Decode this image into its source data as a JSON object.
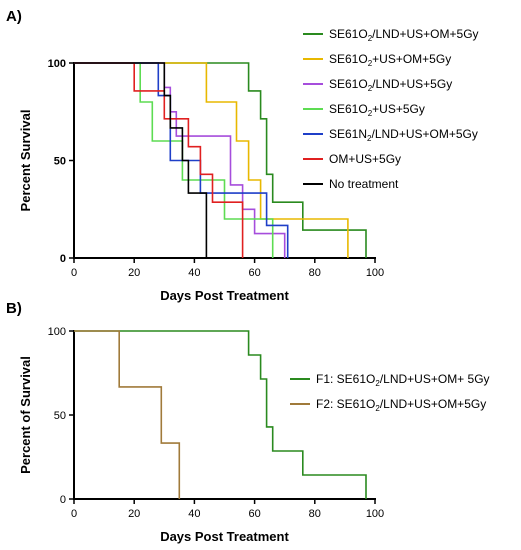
{
  "chart_data": [
    {
      "type": "line",
      "panel_label": "A)",
      "xlabel": "Days Post Treatment",
      "ylabel": "Percent Survival",
      "xlim": [
        0,
        100
      ],
      "ylim": [
        0,
        100
      ],
      "xticks": [
        0,
        20,
        40,
        60,
        80,
        100
      ],
      "yticks": [
        0,
        50,
        100
      ],
      "grid": false,
      "legend_position": "right",
      "series": [
        {
          "name": "SE61O₂/LND+US+OM+5Gy",
          "base": "SE61O",
          "sub": "2",
          "rest": "/LND+US+OM+5Gy",
          "color": "#2a8a1f",
          "steps": [
            [
              0,
              100
            ],
            [
              58,
              100
            ],
            [
              58,
              85.7
            ],
            [
              62,
              85.7
            ],
            [
              62,
              71.4
            ],
            [
              64,
              71.4
            ],
            [
              64,
              42.9
            ],
            [
              66,
              42.9
            ],
            [
              66,
              28.6
            ],
            [
              76,
              28.6
            ],
            [
              76,
              14.3
            ],
            [
              97,
              14.3
            ],
            [
              97,
              0
            ]
          ]
        },
        {
          "name": "SE61O₂+US+OM+5Gy",
          "base": "SE61O",
          "sub": "2",
          "rest": "+US+OM+5Gy",
          "color": "#e8b800",
          "steps": [
            [
              0,
              100
            ],
            [
              44,
              100
            ],
            [
              44,
              80
            ],
            [
              54,
              80
            ],
            [
              54,
              60
            ],
            [
              58,
              60
            ],
            [
              58,
              40
            ],
            [
              62,
              40
            ],
            [
              62,
              20
            ],
            [
              91,
              20
            ],
            [
              91,
              0
            ]
          ]
        },
        {
          "name": "SE61O₂/LND+US+5Gy",
          "base": "SE61O",
          "sub": "2",
          "rest": "/LND+US+5Gy",
          "color": "#a64ddc",
          "steps": [
            [
              0,
              100
            ],
            [
              30,
              100
            ],
            [
              30,
              87.5
            ],
            [
              32,
              87.5
            ],
            [
              32,
              75
            ],
            [
              34,
              75
            ],
            [
              34,
              62.5
            ],
            [
              52,
              62.5
            ],
            [
              52,
              37.5
            ],
            [
              56,
              37.5
            ],
            [
              56,
              25
            ],
            [
              60,
              25
            ],
            [
              60,
              12.5
            ],
            [
              70,
              12.5
            ],
            [
              70,
              0
            ]
          ]
        },
        {
          "name": "SE61O₂+US+5Gy",
          "base": "SE61O",
          "sub": "2",
          "rest": "+US+5Gy",
          "color": "#5ddc52",
          "steps": [
            [
              0,
              100
            ],
            [
              22,
              100
            ],
            [
              22,
              80
            ],
            [
              26,
              80
            ],
            [
              26,
              60
            ],
            [
              36,
              60
            ],
            [
              36,
              40
            ],
            [
              50,
              40
            ],
            [
              50,
              20
            ],
            [
              66,
              20
            ],
            [
              66,
              0
            ]
          ]
        },
        {
          "name": "SE61N₂/LND+US+OM+5Gy",
          "base": "SE61N",
          "sub": "2",
          "rest": "/LND+US+OM+5Gy",
          "color": "#1f3fc8",
          "steps": [
            [
              0,
              100
            ],
            [
              28,
              100
            ],
            [
              28,
              83.3
            ],
            [
              32,
              83.3
            ],
            [
              32,
              50
            ],
            [
              42,
              50
            ],
            [
              42,
              33.3
            ],
            [
              64,
              33.3
            ],
            [
              64,
              16.7
            ],
            [
              71,
              16.7
            ],
            [
              71,
              0
            ]
          ]
        },
        {
          "name": "OM+US+5Gy",
          "base": "OM+US+5Gy",
          "sub": "",
          "rest": "",
          "color": "#e02020",
          "steps": [
            [
              0,
              100
            ],
            [
              20,
              100
            ],
            [
              20,
              85.7
            ],
            [
              30,
              85.7
            ],
            [
              30,
              71.4
            ],
            [
              38,
              71.4
            ],
            [
              38,
              57.1
            ],
            [
              42,
              57.1
            ],
            [
              42,
              42.9
            ],
            [
              46,
              42.9
            ],
            [
              46,
              28.6
            ],
            [
              56,
              28.6
            ],
            [
              56,
              0
            ]
          ]
        },
        {
          "name": "No treatment",
          "base": "No treatment",
          "sub": "",
          "rest": "",
          "color": "#000000",
          "steps": [
            [
              0,
              100
            ],
            [
              30,
              100
            ],
            [
              30,
              83.3
            ],
            [
              32,
              83.3
            ],
            [
              32,
              66.7
            ],
            [
              36,
              66.7
            ],
            [
              36,
              50
            ],
            [
              38,
              50
            ],
            [
              38,
              33.3
            ],
            [
              44,
              33.3
            ],
            [
              44,
              0
            ]
          ]
        }
      ]
    },
    {
      "type": "line",
      "panel_label": "B)",
      "xlabel": "Days Post Treatment",
      "ylabel": "Percent of Survival",
      "xlim": [
        0,
        100
      ],
      "ylim": [
        0,
        100
      ],
      "xticks": [
        0,
        20,
        40,
        60,
        80,
        100
      ],
      "yticks": [
        0,
        50,
        100
      ],
      "grid": false,
      "legend_position": "right",
      "series": [
        {
          "name": "F1: SE61O₂/LND+US+OM+ 5Gy",
          "base": "F1: SE61O",
          "sub": "2",
          "rest": "/LND+US+OM+ 5Gy",
          "color": "#2a8a1f",
          "steps": [
            [
              0,
              100
            ],
            [
              58,
              100
            ],
            [
              58,
              85.7
            ],
            [
              62,
              85.7
            ],
            [
              62,
              71.4
            ],
            [
              64,
              71.4
            ],
            [
              64,
              42.9
            ],
            [
              66,
              42.9
            ],
            [
              66,
              28.6
            ],
            [
              76,
              28.6
            ],
            [
              76,
              14.3
            ],
            [
              97,
              14.3
            ],
            [
              97,
              0
            ]
          ]
        },
        {
          "name": "F2: SE61O₂/LND+US+OM+5Gy",
          "base": "F2: SE61O",
          "sub": "2",
          "rest": "/LND+US+OM+5Gy",
          "color": "#a07a3a",
          "steps": [
            [
              0,
              100
            ],
            [
              15,
              100
            ],
            [
              15,
              66.7
            ],
            [
              29,
              66.7
            ],
            [
              29,
              33.3
            ],
            [
              35,
              33.3
            ],
            [
              35,
              0
            ]
          ]
        }
      ]
    }
  ]
}
